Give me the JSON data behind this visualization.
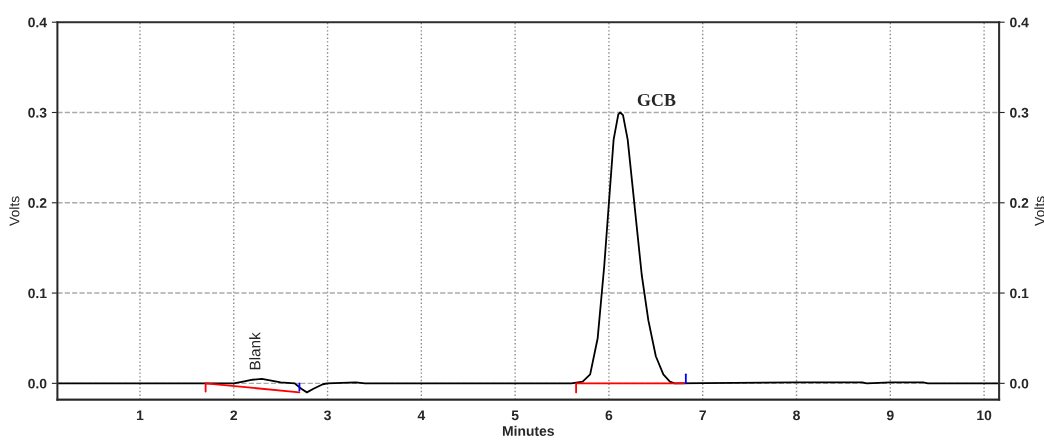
{
  "chart_data": {
    "type": "line",
    "xlabel": "Minutes",
    "ylabel": "Volts",
    "y2label": "Volts",
    "xlim": [
      0.12,
      10.16
    ],
    "xticks": [
      1,
      2,
      3,
      4,
      5,
      6,
      7,
      8,
      9,
      10
    ],
    "ylim": [
      -0.018,
      0.4
    ],
    "yticks": [
      {
        "value": 0,
        "label": "0.0"
      },
      0.1,
      0.2,
      0.3,
      0.4
    ],
    "y2lim": [
      -0.018,
      0.4
    ],
    "y2ticks": [
      {
        "value": 0,
        "label": "0.0"
      },
      0.1,
      0.2,
      0.3,
      0.4
    ],
    "grid": true,
    "legend": false,
    "marker": "none",
    "line_style": "solid",
    "annotations": [
      {
        "text": "Blank",
        "x": 2.3,
        "y": 0.005
      },
      {
        "text": "GCB",
        "x": 6.12,
        "y": 0.3
      }
    ],
    "series": [
      {
        "color": "#000000",
        "x": [
          0.12,
          1.7,
          2.0,
          2.1,
          2.2,
          2.3,
          2.4,
          2.5,
          2.65,
          2.72,
          2.78,
          2.85,
          2.95,
          3.0,
          3.3,
          3.4,
          4.0,
          5.6,
          5.72,
          5.8,
          5.88,
          5.95,
          6.0,
          6.05,
          6.1,
          6.12,
          6.15,
          6.2,
          6.25,
          6.3,
          6.35,
          6.42,
          6.5,
          6.58,
          6.65,
          6.7,
          8.0,
          8.7,
          8.75,
          9.0,
          9.35,
          9.4,
          10.16
        ],
        "values": [
          0,
          0,
          0,
          0.002,
          0.004,
          0.005,
          0.003,
          0.001,
          0,
          -0.006,
          -0.01,
          -0.006,
          -0.001,
          0,
          0.001,
          0,
          0,
          0,
          0.002,
          0.01,
          0.05,
          0.13,
          0.2,
          0.27,
          0.298,
          0.3,
          0.297,
          0.27,
          0.22,
          0.17,
          0.12,
          0.07,
          0.03,
          0.01,
          0.002,
          0,
          0.001,
          0.001,
          0,
          0.001,
          0.001,
          0,
          0
        ]
      },
      {
        "color": "#ff0000",
        "x": [
          1.7,
          1.7,
          2.7
        ],
        "values": [
          -0.009,
          0,
          -0.01
        ]
      },
      {
        "color": "#0000ff",
        "x": [
          2.7,
          2.7
        ],
        "values": [
          -0.008,
          0.0
        ]
      },
      {
        "color": "#ff0000",
        "x": [
          5.65,
          5.65,
          6.8
        ],
        "values": [
          -0.01,
          0,
          0
        ]
      },
      {
        "color": "#0000ff",
        "x": [
          6.82,
          6.82
        ],
        "values": [
          0,
          0.01
        ]
      }
    ]
  }
}
